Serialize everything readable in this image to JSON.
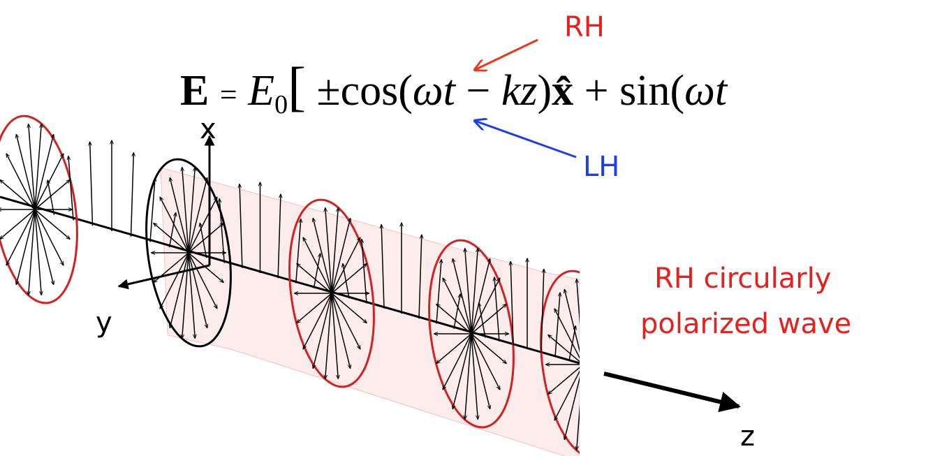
{
  "labels": {
    "rh": "RH",
    "lh": "LH",
    "x_axis": "x",
    "y_axis": "y",
    "z_axis": "z",
    "caption_line1": "RH circularly",
    "caption_line2": "polarized wave"
  },
  "equation": {
    "parts": [
      "E",
      "=",
      "E",
      "0",
      "[",
      "±",
      "cos(",
      "ωt",
      "−",
      "kz",
      ")",
      "x̂",
      "+",
      "sin(",
      "ωt"
    ]
  }
}
